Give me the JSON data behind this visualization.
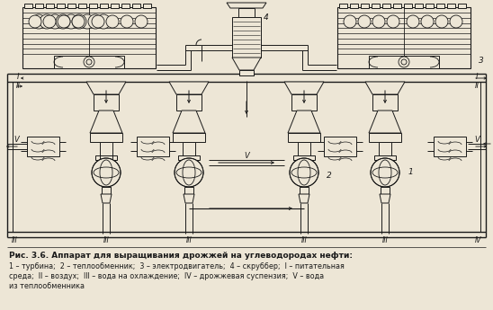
{
  "title": "Рис. 3.6. Аппарат для выращивания дрожжей на углеводородах нефти:",
  "legend_line1": "1 – турбина;  2 – теплообменник;  3 – электродвигатель;  4 – скруббер;  I – питательная",
  "legend_line2": "среда;  II – воздух;  III – вода на охлаждение;  IV – дрожжевая суспензия;  V – вода",
  "legend_line3": "из теплообменника",
  "bg_color": "#ede6d6",
  "line_color": "#1a1a1a",
  "fig_width": 5.48,
  "fig_height": 3.45,
  "dpi": 100
}
